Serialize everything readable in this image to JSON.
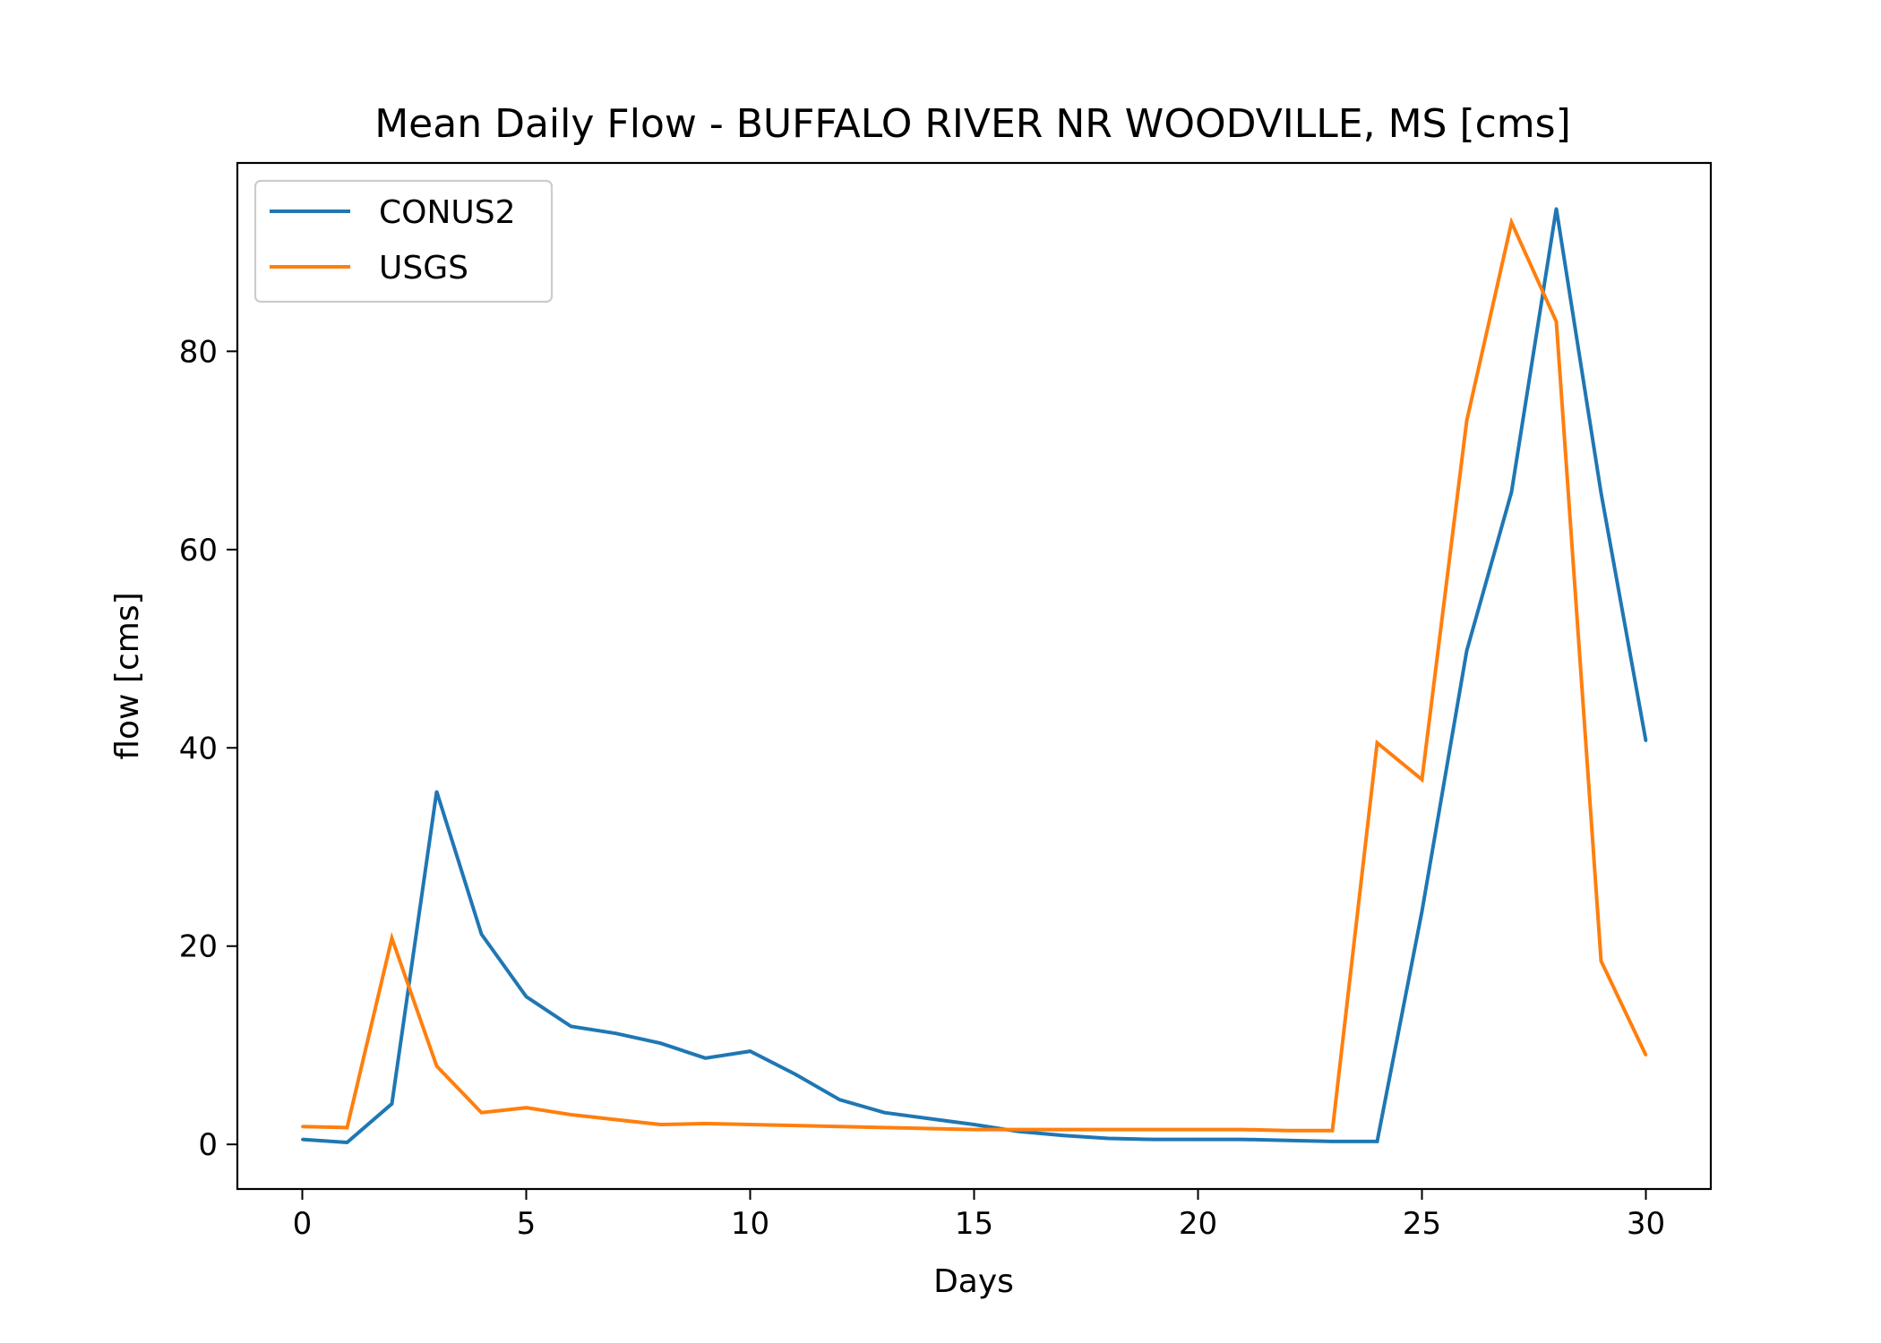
{
  "chart_data": {
    "type": "line",
    "title": "Mean Daily Flow - BUFFALO RIVER NR WOODVILLE, MS [cms]",
    "xlabel": "Days",
    "ylabel": "flow [cms]",
    "xlim": [
      -1.45,
      31.45
    ],
    "ylim": [
      -4.5,
      99
    ],
    "xticks": [
      0,
      5,
      10,
      15,
      20,
      25,
      30
    ],
    "yticks": [
      0,
      20,
      40,
      60,
      80
    ],
    "grid": false,
    "legend_position": "top-left",
    "x": [
      0,
      1,
      2,
      3,
      4,
      5,
      6,
      7,
      8,
      9,
      10,
      11,
      12,
      13,
      14,
      15,
      16,
      17,
      18,
      19,
      20,
      21,
      22,
      23,
      24,
      25,
      26,
      27,
      28,
      29,
      30
    ],
    "series": [
      {
        "name": "CONUS2",
        "color": "#1f77b4",
        "values": [
          0.5,
          0.2,
          4.1,
          35.6,
          21.2,
          14.9,
          11.9,
          11.2,
          10.2,
          8.7,
          9.4,
          7.1,
          4.5,
          3.2,
          2.6,
          2.0,
          1.3,
          0.9,
          0.6,
          0.5,
          0.5,
          0.5,
          0.4,
          0.3,
          0.3,
          23.5,
          49.8,
          65.8,
          94.4,
          65.7,
          40.7
        ]
      },
      {
        "name": "USGS",
        "color": "#ff7f0e",
        "values": [
          1.8,
          1.7,
          20.8,
          7.9,
          3.2,
          3.7,
          3.0,
          2.5,
          2.0,
          2.1,
          2.0,
          1.9,
          1.8,
          1.7,
          1.6,
          1.5,
          1.5,
          1.5,
          1.5,
          1.5,
          1.5,
          1.5,
          1.4,
          1.4,
          40.5,
          36.8,
          73.0,
          93.0,
          83.0,
          18.5,
          9.0
        ]
      }
    ]
  }
}
